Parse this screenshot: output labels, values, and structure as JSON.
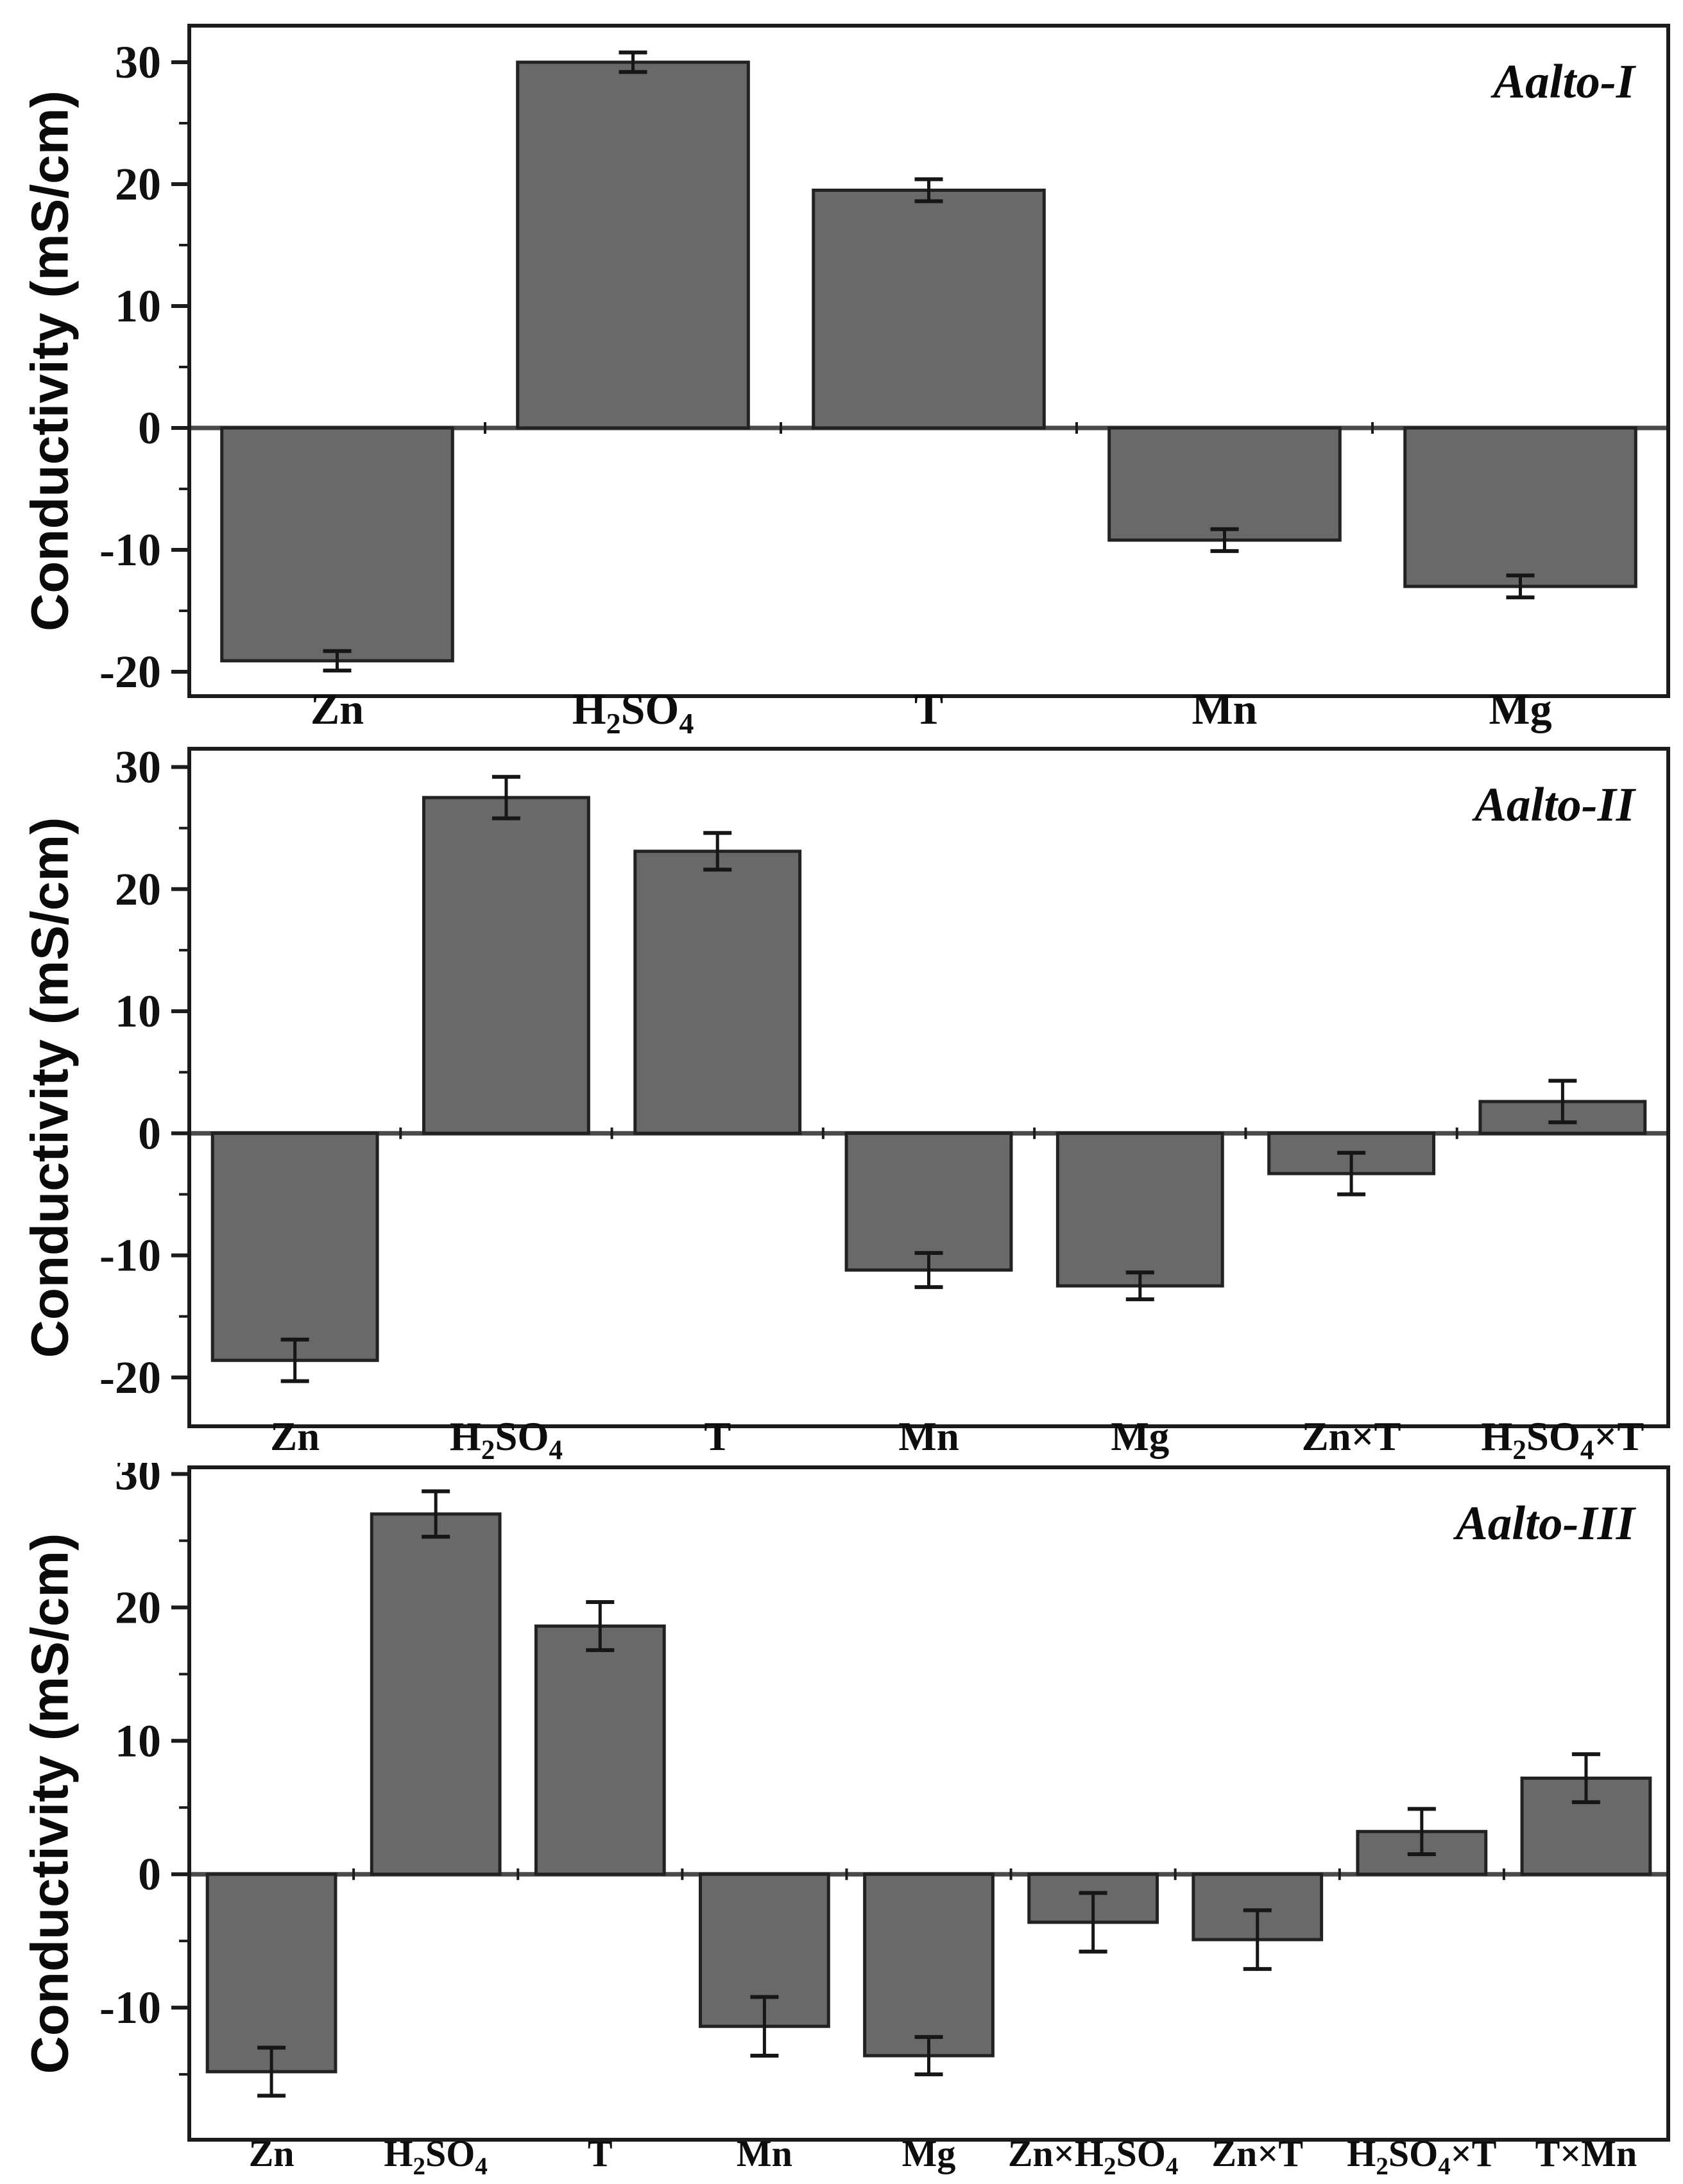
{
  "page": {
    "background": "#ffffff",
    "axis_color": "#1b1b1b",
    "zero_line_color": "#4a4a4a",
    "bar_fill": "#696969",
    "bar_edge": "#222222",
    "error_color": "#161616"
  },
  "chart_data": [
    {
      "type": "bar",
      "panel_label": "Aalto-I",
      "title": "Aalto-I",
      "ylabel": "Conductivity (mS/cm)",
      "xlabel": "",
      "categories": [
        "Zn",
        "H_2SO_4",
        "T",
        "Mn",
        "Mg"
      ],
      "values": [
        -19.1,
        30.0,
        19.5,
        -9.2,
        -13.0
      ],
      "errors": [
        0.8,
        0.8,
        0.9,
        0.9,
        0.9
      ],
      "ylim": [
        -22.0,
        33.0
      ],
      "yticks_major": [
        -20,
        -10,
        0,
        10,
        20,
        30
      ],
      "ytick_minor_step": 5,
      "grid": false,
      "legend": "none"
    },
    {
      "type": "bar",
      "panel_label": "Aalto-II",
      "title": "Aalto-II",
      "ylabel": "Conductivity (mS/cm)",
      "xlabel": "",
      "categories": [
        "Zn",
        "H_2SO_4",
        "T",
        "Mn",
        "Mg",
        "Zn×T",
        "H_2SO_4×T"
      ],
      "values": [
        -18.6,
        27.5,
        23.1,
        -11.2,
        -12.5,
        -3.3,
        2.6
      ],
      "errors": [
        1.7,
        1.7,
        1.5,
        1.4,
        1.1,
        1.7,
        1.7
      ],
      "ylim": [
        -24.0,
        31.5
      ],
      "yticks_major": [
        -20,
        -10,
        0,
        10,
        20,
        30
      ],
      "ytick_minor_step": 5,
      "grid": false,
      "legend": "none"
    },
    {
      "type": "bar",
      "panel_label": "Aalto-III",
      "title": "Aalto-III",
      "ylabel": "Conductivity (mS/cm)",
      "xlabel": "",
      "categories": [
        "Zn",
        "H_2SO_4",
        "T",
        "Mn",
        "Mg",
        "Zn×H_2SO_4",
        "Zn×T",
        "H_2SO_4×T",
        "T×Mn"
      ],
      "values": [
        -14.8,
        27.0,
        18.6,
        -11.4,
        -13.6,
        -3.6,
        -4.9,
        3.2,
        7.2
      ],
      "errors": [
        1.8,
        1.7,
        1.8,
        2.2,
        1.4,
        2.2,
        2.2,
        1.7,
        1.8
      ],
      "ylim": [
        -19.9,
        30.5
      ],
      "yticks_major": [
        -10,
        0,
        10,
        20,
        30
      ],
      "ytick_minor_step": 5,
      "grid": false,
      "legend": "none"
    }
  ]
}
